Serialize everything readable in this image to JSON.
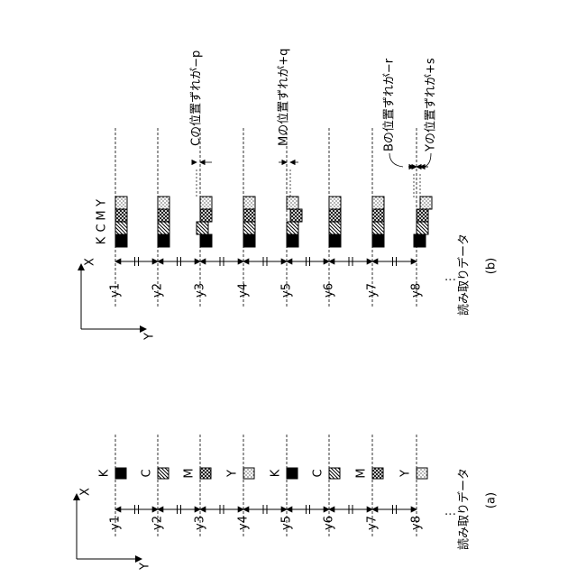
{
  "panel_a": {
    "axis_x": "X",
    "axis_y": "Y",
    "row_labels": [
      "y1",
      "y2",
      "y3",
      "y4",
      "y5",
      "y6",
      "y7",
      "y8"
    ],
    "color_labels": [
      "K",
      "C",
      "M",
      "Y"
    ],
    "ellipsis": "⋮",
    "caption": "読み取りデータ",
    "label": "(a)"
  },
  "panel_b": {
    "axis_x": "X",
    "axis_y": "Y",
    "row_labels": [
      "y1",
      "y2",
      "y3",
      "y4",
      "y5",
      "y6",
      "y7",
      "y8"
    ],
    "color_labels": [
      "K",
      "C",
      "M",
      "Y"
    ],
    "ellipsis": "⋮",
    "caption": "読み取りデータ",
    "label": "(b)",
    "annotations": [
      "Cの位置ずれが−p",
      "Mの位置ずれが+q",
      "Bの位置ずれが−r",
      "Yの位置ずれが+s"
    ]
  }
}
